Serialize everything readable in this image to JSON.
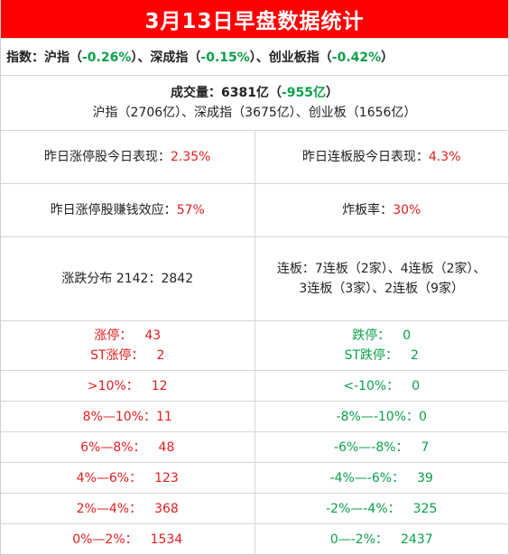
{
  "title": "3月13日早盘数据统计",
  "indices": {
    "label": "指数：",
    "sh_name": "沪指",
    "sh_change": "-0.26%",
    "sz_name": "深成指",
    "sz_change": "-0.15%",
    "cy_name": "创业板指",
    "cy_change": "-0.42%"
  },
  "volume": {
    "label": "成交量：",
    "total": "6381亿",
    "change": "-955亿",
    "breakdown": "沪指（2706亿）、深成指（3675亿）、创业板（1656亿）"
  },
  "yesterday": {
    "limit_up_label": "昨日涨停股今日表现：",
    "limit_up_value": "2.35%",
    "consecutive_label": "昨日连板股今日表现：",
    "consecutive_value": "4.3%"
  },
  "money": {
    "effect_label": "昨日涨停股赚钱效应：",
    "effect_value": "57%",
    "broken_label": "炸板率：",
    "broken_value": "30%"
  },
  "distribution": {
    "label": "涨跌分布 2142：2842",
    "consecutive_line1": "连板：7连板（2家）、4连板（2家）、",
    "consecutive_line2": "3连板（3家）、2连板（9家）"
  },
  "limits": {
    "up_label": "涨停：",
    "up_value": "43",
    "st_up_label": "ST涨停：",
    "st_up_value": "2",
    "down_label": "跌停：",
    "down_value": "0",
    "st_down_label": "ST跌停：",
    "st_down_value": "2"
  },
  "ranges": [
    {
      "up_label": ">10%：",
      "up_value": "12",
      "down_label": "<-10%：",
      "down_value": "0"
    },
    {
      "up_label": "8%—10%：",
      "up_value": "11",
      "down_label": "-8%—-10%：",
      "down_value": "0"
    },
    {
      "up_label": "6%—8%：",
      "up_value": "48",
      "down_label": "-6%—-8%：",
      "down_value": "7"
    },
    {
      "up_label": "4%—6%：",
      "up_value": "123",
      "down_label": "-4%—-6%：",
      "down_value": "39"
    },
    {
      "up_label": "2%—4%：",
      "up_value": "368",
      "down_label": "-2%—-4%：",
      "down_value": "325"
    },
    {
      "up_label": "0%—2%：",
      "up_value": "1534",
      "down_label": "0—-2%：",
      "down_value": "2437"
    }
  ],
  "colors": {
    "title_bg": "#ff0000",
    "up": "#e02020",
    "down": "#0ba04a"
  }
}
